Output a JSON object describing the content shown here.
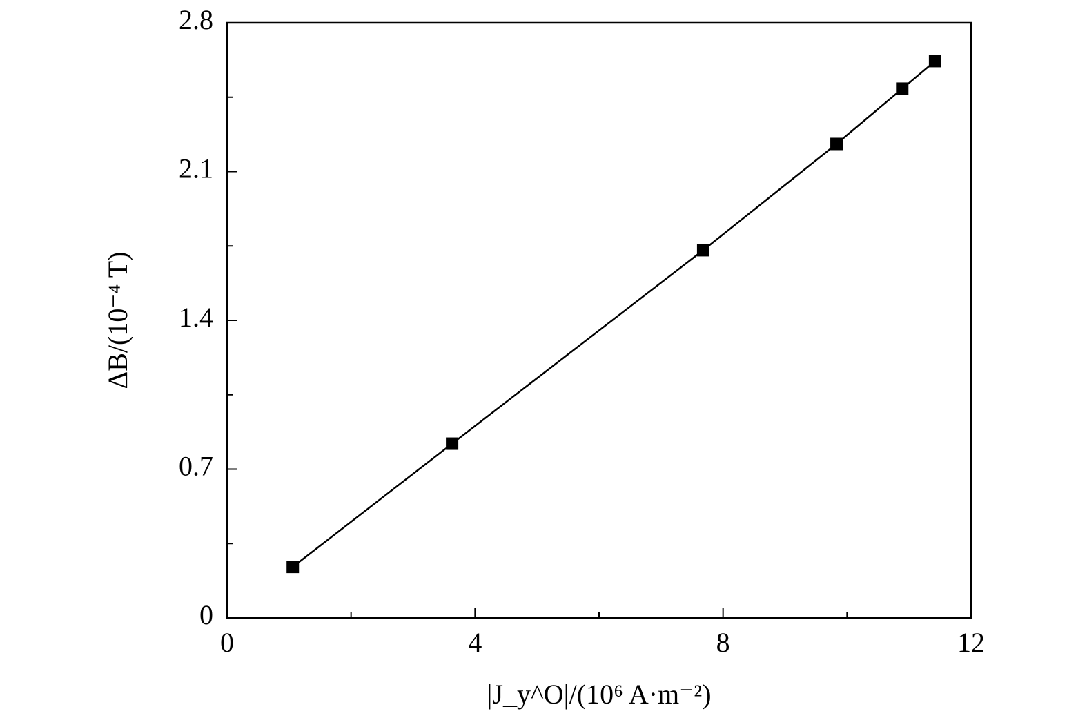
{
  "chart_data": {
    "type": "line",
    "xlabel": "|J_y^O|/(10⁶ A·m⁻²)",
    "ylabel": "ΔB/(10⁻⁴ T)",
    "x": [
      1.06,
      3.63,
      7.68,
      9.83,
      10.89,
      11.42
    ],
    "series": [
      {
        "name": null,
        "color": "#000000",
        "values": [
          0.24,
          0.82,
          1.73,
          2.23,
          2.49,
          2.62
        ]
      }
    ],
    "marker": "square",
    "xlim": [
      0,
      12
    ],
    "xticks": [
      0,
      4,
      8,
      12
    ],
    "xticks_minor": [
      2,
      6,
      10
    ],
    "ylim": [
      0,
      2.8
    ],
    "yticks": [
      0,
      0.7,
      1.4,
      2.1,
      2.8
    ],
    "yticks_minor": [
      0.35,
      1.05,
      1.75,
      2.45
    ],
    "grid": false
  }
}
